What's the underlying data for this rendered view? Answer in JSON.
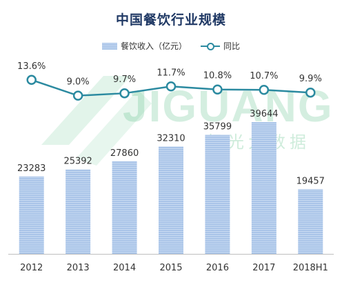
{
  "chart_data": {
    "type": "bar+line",
    "title": "中国餐饮行业规模",
    "categories": [
      "2012",
      "2013",
      "2014",
      "2015",
      "2016",
      "2017",
      "2018H1"
    ],
    "series": [
      {
        "name": "餐饮收入（亿元）",
        "type": "bar",
        "values": [
          23283,
          25392,
          27860,
          32310,
          35799,
          39644,
          19457
        ],
        "labels": [
          "23283",
          "25392",
          "27860",
          "32310",
          "35799",
          "39644",
          "19457"
        ],
        "color": "#a9c4e8"
      },
      {
        "name": "同比",
        "type": "line",
        "values": [
          13.6,
          9.0,
          9.7,
          11.7,
          10.8,
          10.7,
          9.9
        ],
        "labels": [
          "13.6%",
          "9.0%",
          "9.7%",
          "11.7%",
          "10.8%",
          "10.7%",
          "9.9%"
        ],
        "color": "#2b8aa0"
      }
    ],
    "ylim_bar": [
      0,
      50000
    ],
    "legend_position": "top-center",
    "grid": false
  },
  "watermark": {
    "text": "JIGUANG",
    "subtext": "极光大数据"
  }
}
